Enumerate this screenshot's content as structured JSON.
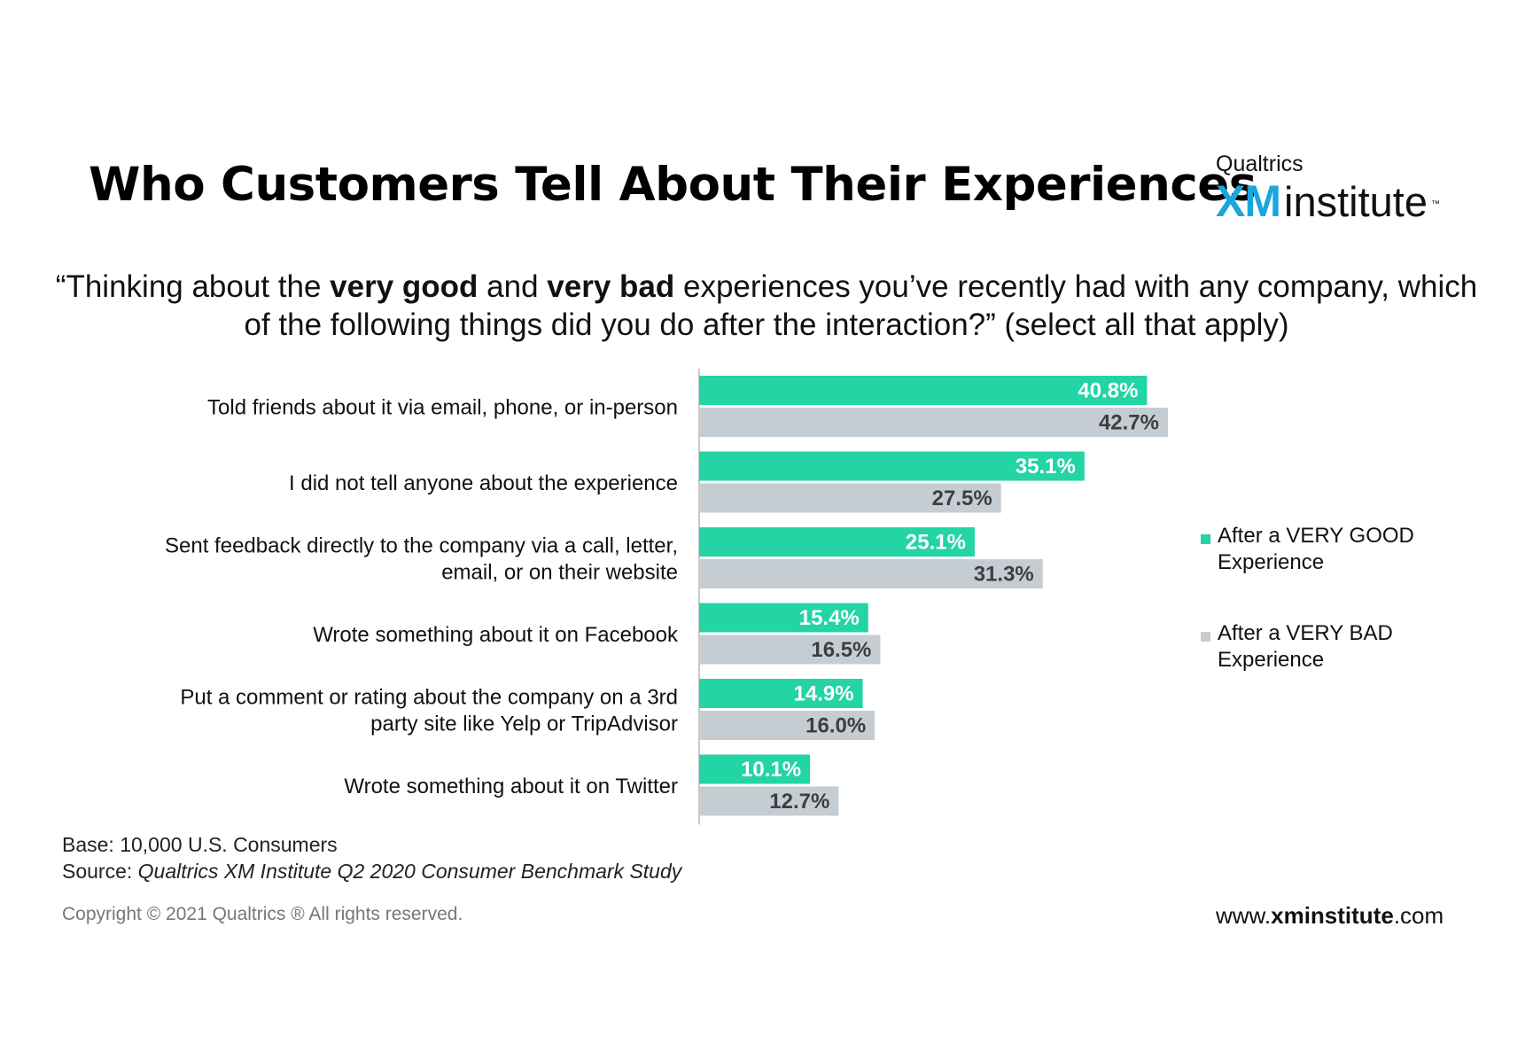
{
  "header": {
    "title": "Who Customers Tell About Their Experiences",
    "logo": {
      "top": "Qualtrics",
      "xm": "XM",
      "institute": "institute",
      "tm": "™"
    }
  },
  "question": {
    "part1": "“Thinking about the ",
    "bold1": "very good",
    "part2": " and ",
    "bold2": "very bad",
    "part3": " experiences you’ve recently had with any company, which of the following things did you do after the interaction?” (select all that apply)"
  },
  "chart_data": {
    "type": "bar",
    "orientation": "horizontal",
    "categories": [
      [
        "Told friends about it via email, phone, or in-person"
      ],
      [
        "I did not tell anyone about the experience"
      ],
      [
        "Sent feedback directly to the company via a call, letter,",
        "email, or on their website"
      ],
      [
        "Wrote something about it on Facebook"
      ],
      [
        "Put a comment or rating about the company on a 3rd",
        "party site like Yelp or TripAdvisor"
      ],
      [
        "Wrote something about it on Twitter"
      ]
    ],
    "series": [
      {
        "name": "After a VERY GOOD Experience",
        "legend_lines": [
          "After a VERY GOOD",
          "Experience"
        ],
        "color": "#23d4a5",
        "label_color": "#ffffff",
        "values": [
          40.8,
          35.1,
          25.1,
          15.4,
          14.9,
          10.1
        ],
        "labels": [
          "40.8%",
          "35.1%",
          "25.1%",
          "15.4%",
          "14.9%",
          "10.1%"
        ]
      },
      {
        "name": "After a VERY BAD Experience",
        "legend_lines": [
          "After a VERY BAD",
          "Experience"
        ],
        "color": "#c5cdd3",
        "label_color": "#3a3f44",
        "values": [
          42.7,
          27.5,
          31.3,
          16.5,
          16.0,
          12.7
        ],
        "labels": [
          "42.7%",
          "27.5%",
          "31.3%",
          "16.5%",
          "16.0%",
          "12.7%"
        ]
      }
    ],
    "unit": "%",
    "xlim": [
      0,
      42.7
    ],
    "legend": "right",
    "grid": false
  },
  "footer": {
    "base": "Base: 10,000 U.S. Consumers",
    "source_label": "Source: ",
    "source_text": "Qualtrics XM Institute Q2 2020 Consumer Benchmark Study",
    "copyright": "Copyright © 2021 Qualtrics ® All rights reserved.",
    "url_prefix": "www.",
    "url_bold": "xminstitute",
    "url_suffix": ".com"
  }
}
